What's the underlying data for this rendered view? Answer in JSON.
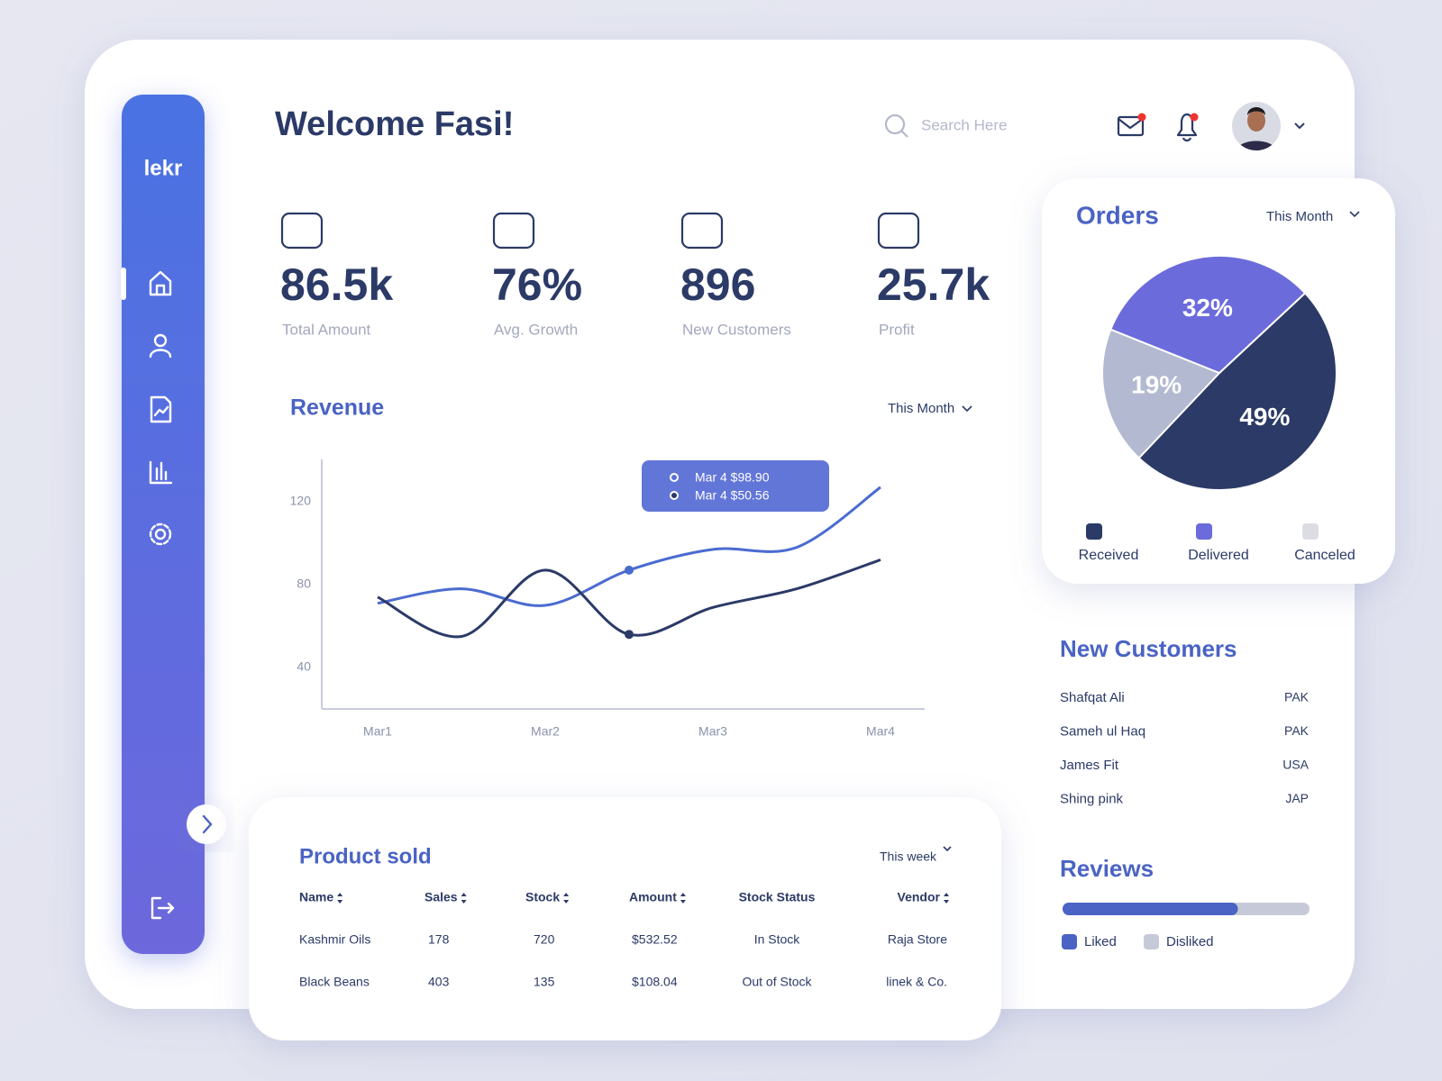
{
  "sidebar": {
    "logo": "lekr"
  },
  "header": {
    "title": "Welcome Fasi!",
    "search_placeholder": "Search Here"
  },
  "stats": [
    {
      "value": "86.5k",
      "label": "Total Amount"
    },
    {
      "value": "76%",
      "label": "Avg. Growth"
    },
    {
      "value": "896",
      "label": "New Customers"
    },
    {
      "value": "25.7k",
      "label": "Profit"
    }
  ],
  "chart_data": [
    {
      "type": "line",
      "title": "Revenue",
      "period": "This Month",
      "categories": [
        "Mar1",
        null,
        "Mar2",
        null,
        "Mar3",
        null,
        "Mar4"
      ],
      "series": [
        {
          "color": "#4a6bd0",
          "values": [
            71,
            78,
            70,
            87,
            97,
            98,
            127
          ]
        },
        {
          "color": "#2b3a67",
          "values": [
            74,
            55,
            87,
            56,
            69,
            78,
            92
          ]
        }
      ],
      "ylim": [
        20,
        140
      ],
      "yticks": [
        40,
        80,
        120
      ],
      "grid": false,
      "tooltip": [
        "Mar 4 $98.90",
        "Mar 4 $50.56"
      ]
    },
    {
      "type": "pie",
      "title": "Orders",
      "period": "This Month",
      "categories": [
        "Received",
        "Delivered",
        "Canceled"
      ],
      "values": [
        49,
        32,
        19
      ],
      "value_labels": [
        "49%",
        "32%",
        "19%"
      ],
      "colors": [
        "#2b3a67",
        "#6c6bdb",
        "#b3b9d1"
      ],
      "legend_colors": [
        "#2b3a67",
        "#6c6bdb",
        "#dcdde3"
      ]
    }
  ],
  "new_customers": {
    "title": "New Customers",
    "rows": [
      [
        "Shafqat Ali",
        "PAK"
      ],
      [
        "Sameh ul Haq",
        "PAK"
      ],
      [
        "James Fit",
        "USA"
      ],
      [
        "Shing pink",
        "JAP"
      ]
    ]
  },
  "reviews": {
    "title": "Reviews",
    "series": [
      {
        "name": "Liked",
        "value": 71,
        "color": "#4a63c4"
      },
      {
        "name": "Disliked",
        "value": 29,
        "color": "#c6cad8"
      }
    ]
  },
  "product_sold": {
    "title": "Product sold",
    "period": "This week",
    "columns": [
      "Name",
      "Sales",
      "Stock",
      "Amount",
      "Stock Status",
      "Vendor"
    ],
    "rows": [
      [
        "Kashmir Oils",
        "178",
        "720",
        "$532.52",
        "In Stock",
        "Raja Store"
      ],
      [
        "Black Beans",
        "403",
        "135",
        "$108.04",
        "Out of Stock",
        "linek & Co."
      ]
    ]
  }
}
